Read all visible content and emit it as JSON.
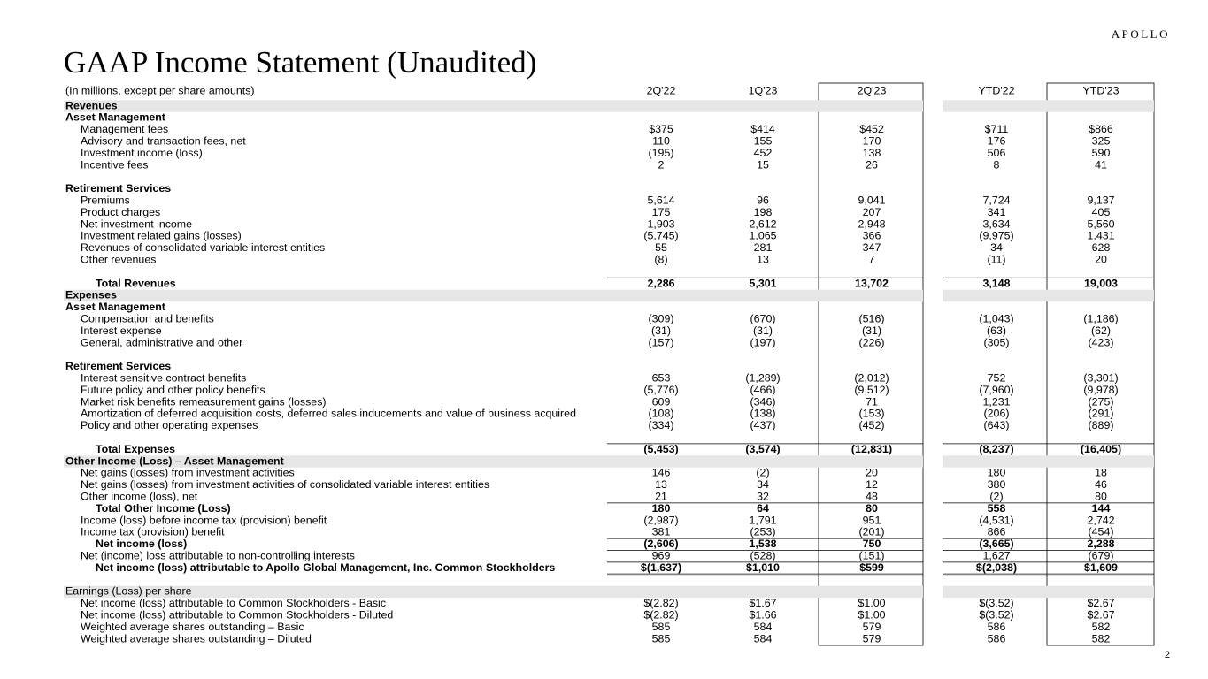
{
  "header": {
    "logo": "APOLLO",
    "title": "GAAP Income Statement (Unaudited)"
  },
  "table": {
    "columns": [
      "(In millions, except per share amounts)",
      "2Q'22",
      "1Q'23",
      "2Q'23",
      "YTD'22",
      "YTD'23"
    ],
    "rows": [
      {
        "label": "Revenues"
      },
      {
        "label": "Asset Management"
      },
      {
        "label": "Management fees",
        "values": [
          "$375",
          "$414",
          "$452",
          "$711",
          "$866"
        ]
      },
      {
        "label": "Advisory and transaction fees, net",
        "values": [
          "110",
          "155",
          "170",
          "176",
          "325"
        ]
      },
      {
        "label": "Investment income (loss)",
        "values": [
          "(195)",
          "452",
          "138",
          "506",
          "590"
        ]
      },
      {
        "label": "Incentive fees",
        "values": [
          "2",
          "15",
          "26",
          "8",
          "41"
        ]
      },
      {
        "label": "Retirement Services"
      },
      {
        "label": "Premiums",
        "values": [
          "5,614",
          "96",
          "9,041",
          "7,724",
          "9,137"
        ]
      },
      {
        "label": "Product charges",
        "values": [
          "175",
          "198",
          "207",
          "341",
          "405"
        ]
      },
      {
        "label": "Net investment income",
        "values": [
          "1,903",
          "2,612",
          "2,948",
          "3,634",
          "5,560"
        ]
      },
      {
        "label": "Investment related gains (losses)",
        "values": [
          "(5,745)",
          "1,065",
          "366",
          "(9,975)",
          "1,431"
        ]
      },
      {
        "label": "Revenues of consolidated variable interest entities",
        "values": [
          "55",
          "281",
          "347",
          "34",
          "628"
        ]
      },
      {
        "label": "Other revenues",
        "values": [
          "(8)",
          "13",
          "7",
          "(11)",
          "20"
        ]
      },
      {
        "label": "Total Revenues",
        "values": [
          "2,286",
          "5,301",
          "13,702",
          "3,148",
          "19,003"
        ]
      },
      {
        "label": "Expenses"
      },
      {
        "label": "Asset Management"
      },
      {
        "label": "Compensation and benefits",
        "values": [
          "(309)",
          "(670)",
          "(516)",
          "(1,043)",
          "(1,186)"
        ]
      },
      {
        "label": "Interest expense",
        "values": [
          "(31)",
          "(31)",
          "(31)",
          "(63)",
          "(62)"
        ]
      },
      {
        "label": "General, administrative and other",
        "values": [
          "(157)",
          "(197)",
          "(226)",
          "(305)",
          "(423)"
        ]
      },
      {
        "label": "Retirement Services"
      },
      {
        "label": "Interest sensitive contract benefits",
        "values": [
          "653",
          "(1,289)",
          "(2,012)",
          "752",
          "(3,301)"
        ]
      },
      {
        "label": "Future policy and other policy benefits",
        "values": [
          "(5,776)",
          "(466)",
          "(9,512)",
          "(7,960)",
          "(9,978)"
        ]
      },
      {
        "label": "Market risk benefits remeasurement gains (losses)",
        "values": [
          "609",
          "(346)",
          "71",
          "1,231",
          "(275)"
        ]
      },
      {
        "label": "Amortization of deferred acquisition costs, deferred sales inducements and value of business acquired",
        "values": [
          "(108)",
          "(138)",
          "(153)",
          "(206)",
          "(291)"
        ]
      },
      {
        "label": "Policy and other operating expenses",
        "values": [
          "(334)",
          "(437)",
          "(452)",
          "(643)",
          "(889)"
        ]
      },
      {
        "label": "Total Expenses",
        "values": [
          "(5,453)",
          "(3,574)",
          "(12,831)",
          "(8,237)",
          "(16,405)"
        ]
      },
      {
        "label": "Other Income (Loss) – Asset Management"
      },
      {
        "label": "Net gains (losses) from investment activities",
        "values": [
          "146",
          "(2)",
          "20",
          "180",
          "18"
        ]
      },
      {
        "label": "Net gains (losses) from investment activities of consolidated variable interest entities",
        "values": [
          "13",
          "34",
          "12",
          "380",
          "46"
        ]
      },
      {
        "label": "Other income (loss), net",
        "values": [
          "21",
          "32",
          "48",
          "(2)",
          "80"
        ]
      },
      {
        "label": "Total Other Income (Loss)",
        "values": [
          "180",
          "64",
          "80",
          "558",
          "144"
        ]
      },
      {
        "label": "Income (loss) before income tax (provision) benefit",
        "values": [
          "(2,987)",
          "1,791",
          "951",
          "(4,531)",
          "2,742"
        ]
      },
      {
        "label": "Income tax (provision) benefit",
        "values": [
          "381",
          "(253)",
          "(201)",
          "866",
          "(454)"
        ]
      },
      {
        "label": "Net income (loss)",
        "values": [
          "(2,606)",
          "1,538",
          "750",
          "(3,665)",
          "2,288"
        ]
      },
      {
        "label": "Net (income) loss attributable to non-controlling interests",
        "values": [
          "969",
          "(528)",
          "(151)",
          "1,627",
          "(679)"
        ]
      },
      {
        "label": "Net income (loss) attributable to Apollo Global Management, Inc. Common Stockholders",
        "values": [
          "$(1,637)",
          "$1,010",
          "$599",
          "$(2,038)",
          "$1,609"
        ]
      },
      {
        "label": "Earnings (Loss) per share"
      },
      {
        "label": "Net income (loss) attributable to Common Stockholders - Basic",
        "values": [
          "$(2.82)",
          "$1.67",
          "$1.00",
          "$(3.52)",
          "$2.67"
        ]
      },
      {
        "label": "Net income (loss) attributable to Common Stockholders - Diluted",
        "values": [
          "$(2.82)",
          "$1.66",
          "$1.00",
          "$(3.52)",
          "$2.67"
        ]
      },
      {
        "label": "Weighted average shares outstanding – Basic",
        "values": [
          "585",
          "584",
          "579",
          "586",
          "582"
        ]
      },
      {
        "label": "Weighted average shares outstanding – Diluted",
        "values": [
          "585",
          "584",
          "579",
          "586",
          "582"
        ]
      }
    ]
  },
  "footer": {
    "page": "2"
  }
}
